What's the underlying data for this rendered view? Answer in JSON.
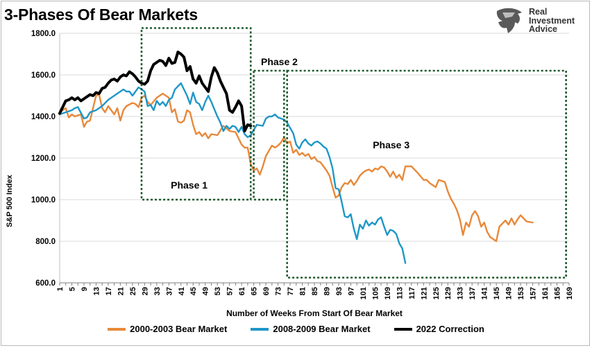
{
  "title": "3-Phases Of Bear Markets",
  "logo": {
    "line1": "Real",
    "line2": "Investment",
    "line3": "Advice"
  },
  "colors": {
    "bear2000": "#e8893a",
    "bear2008": "#1e97c8",
    "corr2022": "#000000",
    "phase_box": "#1f5a2e",
    "grid": "#d9d9d9"
  },
  "chart_data": {
    "type": "line",
    "title": "3-Phases Of Bear Markets",
    "xlabel": "Number of Weeks From Start Of Bear Market",
    "ylabel": "S&P 500 Index",
    "ylim": [
      600,
      1800
    ],
    "yticks": [
      "600.0",
      "800.0",
      "1000.0",
      "1200.0",
      "1400.0",
      "1600.0",
      "1800.0"
    ],
    "xlim": [
      1,
      169
    ],
    "xtick_labels": [
      "1",
      "5",
      "9",
      "13",
      "17",
      "21",
      "25",
      "29",
      "33",
      "37",
      "41",
      "45",
      "49",
      "53",
      "57",
      "61",
      "65",
      "69",
      "73",
      "77",
      "81",
      "85",
      "89",
      "93",
      "97",
      "101",
      "105",
      "109",
      "113",
      "117",
      "121",
      "125",
      "129",
      "133",
      "137",
      "141",
      "145",
      "149",
      "153",
      "157",
      "161",
      "165",
      "169"
    ],
    "series": [
      {
        "name": "2000-2003 Bear Market",
        "color": "#e8893a",
        "points": [
          [
            1,
            1420
          ],
          [
            3,
            1440
          ],
          [
            4,
            1395
          ],
          [
            5,
            1410
          ],
          [
            6,
            1400
          ],
          [
            8,
            1410
          ],
          [
            9,
            1350
          ],
          [
            10,
            1375
          ],
          [
            11,
            1380
          ],
          [
            13,
            1500
          ],
          [
            14,
            1505
          ],
          [
            15,
            1440
          ],
          [
            16,
            1420
          ],
          [
            17,
            1450
          ],
          [
            18,
            1430
          ],
          [
            19,
            1410
          ],
          [
            20,
            1440
          ],
          [
            21,
            1380
          ],
          [
            22,
            1430
          ],
          [
            23,
            1450
          ],
          [
            25,
            1465
          ],
          [
            26,
            1460
          ],
          [
            27,
            1445
          ],
          [
            28,
            1490
          ],
          [
            29,
            1500
          ],
          [
            30,
            1470
          ],
          [
            31,
            1455
          ],
          [
            33,
            1490
          ],
          [
            35,
            1510
          ],
          [
            37,
            1490
          ],
          [
            38,
            1420
          ],
          [
            39,
            1435
          ],
          [
            40,
            1375
          ],
          [
            41,
            1370
          ],
          [
            42,
            1380
          ],
          [
            43,
            1430
          ],
          [
            44,
            1420
          ],
          [
            45,
            1360
          ],
          [
            46,
            1315
          ],
          [
            47,
            1325
          ],
          [
            48,
            1305
          ],
          [
            49,
            1320
          ],
          [
            50,
            1295
          ],
          [
            51,
            1315
          ],
          [
            53,
            1310
          ],
          [
            55,
            1355
          ],
          [
            57,
            1330
          ],
          [
            59,
            1325
          ],
          [
            61,
            1265
          ],
          [
            62,
            1250
          ],
          [
            63,
            1250
          ],
          [
            64,
            1170
          ],
          [
            65,
            1140
          ],
          [
            66,
            1150
          ],
          [
            67,
            1120
          ],
          [
            68,
            1160
          ],
          [
            69,
            1210
          ],
          [
            70,
            1235
          ],
          [
            71,
            1260
          ],
          [
            72,
            1250
          ],
          [
            73,
            1260
          ],
          [
            74,
            1275
          ],
          [
            75,
            1300
          ],
          [
            76,
            1270
          ],
          [
            77,
            1280
          ],
          [
            78,
            1225
          ],
          [
            79,
            1240
          ],
          [
            80,
            1215
          ],
          [
            81,
            1225
          ],
          [
            82,
            1210
          ],
          [
            83,
            1220
          ],
          [
            84,
            1195
          ],
          [
            85,
            1205
          ],
          [
            86,
            1185
          ],
          [
            87,
            1180
          ],
          [
            88,
            1160
          ],
          [
            89,
            1140
          ],
          [
            90,
            1115
          ],
          [
            91,
            1060
          ],
          [
            92,
            1010
          ],
          [
            93,
            1020
          ],
          [
            94,
            1060
          ],
          [
            95,
            1080
          ],
          [
            96,
            1075
          ],
          [
            97,
            1095
          ],
          [
            98,
            1070
          ],
          [
            99,
            1090
          ],
          [
            100,
            1115
          ],
          [
            101,
            1130
          ],
          [
            102,
            1140
          ],
          [
            103,
            1145
          ],
          [
            104,
            1135
          ],
          [
            105,
            1150
          ],
          [
            106,
            1145
          ],
          [
            107,
            1160
          ],
          [
            108,
            1155
          ],
          [
            109,
            1135
          ],
          [
            110,
            1110
          ],
          [
            111,
            1135
          ],
          [
            112,
            1105
          ],
          [
            113,
            1120
          ],
          [
            114,
            1095
          ],
          [
            115,
            1160
          ],
          [
            117,
            1160
          ],
          [
            119,
            1130
          ],
          [
            121,
            1095
          ],
          [
            122,
            1095
          ],
          [
            123,
            1080
          ],
          [
            125,
            1060
          ],
          [
            126,
            1095
          ],
          [
            128,
            1085
          ],
          [
            129,
            1040
          ],
          [
            130,
            1005
          ],
          [
            131,
            980
          ],
          [
            132,
            950
          ],
          [
            133,
            905
          ],
          [
            134,
            830
          ],
          [
            135,
            890
          ],
          [
            136,
            870
          ],
          [
            137,
            925
          ],
          [
            138,
            945
          ],
          [
            139,
            920
          ],
          [
            140,
            870
          ],
          [
            141,
            890
          ],
          [
            142,
            845
          ],
          [
            143,
            820
          ],
          [
            144,
            810
          ],
          [
            145,
            800
          ],
          [
            146,
            870
          ],
          [
            147,
            885
          ],
          [
            148,
            900
          ],
          [
            149,
            880
          ],
          [
            150,
            910
          ],
          [
            151,
            880
          ],
          [
            152,
            905
          ],
          [
            153,
            925
          ],
          [
            154,
            910
          ],
          [
            155,
            895
          ],
          [
            157,
            890
          ]
        ]
      },
      {
        "name": "2008-2009 Bear Market",
        "color": "#1e97c8",
        "points": [
          [
            1,
            1410
          ],
          [
            3,
            1420
          ],
          [
            4,
            1425
          ],
          [
            5,
            1430
          ],
          [
            6,
            1440
          ],
          [
            7,
            1445
          ],
          [
            9,
            1390
          ],
          [
            10,
            1395
          ],
          [
            11,
            1420
          ],
          [
            13,
            1430
          ],
          [
            15,
            1450
          ],
          [
            17,
            1480
          ],
          [
            19,
            1500
          ],
          [
            21,
            1520
          ],
          [
            22,
            1530
          ],
          [
            23,
            1520
          ],
          [
            24,
            1520
          ],
          [
            25,
            1500
          ],
          [
            27,
            1540
          ],
          [
            29,
            1520
          ],
          [
            30,
            1450
          ],
          [
            31,
            1455
          ],
          [
            32,
            1430
          ],
          [
            33,
            1475
          ],
          [
            34,
            1455
          ],
          [
            35,
            1470
          ],
          [
            36,
            1450
          ],
          [
            37,
            1480
          ],
          [
            38,
            1490
          ],
          [
            39,
            1530
          ],
          [
            40,
            1545
          ],
          [
            41,
            1560
          ],
          [
            42,
            1530
          ],
          [
            43,
            1500
          ],
          [
            44,
            1460
          ],
          [
            45,
            1515
          ],
          [
            46,
            1470
          ],
          [
            47,
            1460
          ],
          [
            48,
            1430
          ],
          [
            49,
            1470
          ],
          [
            50,
            1500
          ],
          [
            51,
            1470
          ],
          [
            52,
            1435
          ],
          [
            53,
            1400
          ],
          [
            54,
            1370
          ],
          [
            55,
            1330
          ],
          [
            56,
            1355
          ],
          [
            57,
            1340
          ],
          [
            58,
            1355
          ],
          [
            59,
            1350
          ],
          [
            60,
            1325
          ],
          [
            61,
            1350
          ],
          [
            62,
            1315
          ],
          [
            63,
            1300
          ],
          [
            64,
            1310
          ],
          [
            66,
            1360
          ],
          [
            68,
            1355
          ],
          [
            69,
            1390
          ],
          [
            70,
            1400
          ],
          [
            71,
            1400
          ],
          [
            72,
            1410
          ],
          [
            73,
            1395
          ],
          [
            75,
            1385
          ],
          [
            76,
            1370
          ],
          [
            77,
            1345
          ],
          [
            78,
            1320
          ],
          [
            79,
            1265
          ],
          [
            80,
            1245
          ],
          [
            81,
            1275
          ],
          [
            82,
            1290
          ],
          [
            83,
            1270
          ],
          [
            84,
            1260
          ],
          [
            85,
            1275
          ],
          [
            86,
            1280
          ],
          [
            87,
            1270
          ],
          [
            88,
            1255
          ],
          [
            89,
            1245
          ],
          [
            90,
            1205
          ],
          [
            91,
            1150
          ],
          [
            92,
            1055
          ],
          [
            93,
            1050
          ],
          [
            94,
            990
          ],
          [
            95,
            920
          ],
          [
            96,
            915
          ],
          [
            97,
            930
          ],
          [
            98,
            860
          ],
          [
            99,
            810
          ],
          [
            100,
            880
          ],
          [
            101,
            860
          ],
          [
            102,
            900
          ],
          [
            103,
            875
          ],
          [
            104,
            890
          ],
          [
            105,
            880
          ],
          [
            106,
            905
          ],
          [
            107,
            915
          ],
          [
            108,
            870
          ],
          [
            109,
            830
          ],
          [
            110,
            855
          ],
          [
            111,
            850
          ],
          [
            112,
            835
          ],
          [
            113,
            790
          ],
          [
            114,
            765
          ],
          [
            115,
            695
          ]
        ]
      },
      {
        "name": "2022 Correction",
        "color": "#000000",
        "points": [
          [
            1,
            1415
          ],
          [
            3,
            1475
          ],
          [
            4,
            1480
          ],
          [
            5,
            1490
          ],
          [
            6,
            1480
          ],
          [
            7,
            1490
          ],
          [
            8,
            1475
          ],
          [
            9,
            1485
          ],
          [
            10,
            1495
          ],
          [
            11,
            1505
          ],
          [
            12,
            1500
          ],
          [
            13,
            1515
          ],
          [
            14,
            1510
          ],
          [
            15,
            1535
          ],
          [
            16,
            1540
          ],
          [
            17,
            1560
          ],
          [
            18,
            1575
          ],
          [
            19,
            1580
          ],
          [
            20,
            1570
          ],
          [
            21,
            1590
          ],
          [
            22,
            1600
          ],
          [
            23,
            1595
          ],
          [
            24,
            1615
          ],
          [
            25,
            1605
          ],
          [
            26,
            1590
          ],
          [
            27,
            1570
          ],
          [
            28,
            1560
          ],
          [
            29,
            1555
          ],
          [
            30,
            1570
          ],
          [
            31,
            1620
          ],
          [
            32,
            1650
          ],
          [
            33,
            1660
          ],
          [
            34,
            1670
          ],
          [
            35,
            1665
          ],
          [
            36,
            1645
          ],
          [
            37,
            1680
          ],
          [
            38,
            1655
          ],
          [
            39,
            1660
          ],
          [
            40,
            1710
          ],
          [
            41,
            1700
          ],
          [
            42,
            1685
          ],
          [
            43,
            1620
          ],
          [
            44,
            1640
          ],
          [
            45,
            1580
          ],
          [
            46,
            1560
          ],
          [
            47,
            1595
          ],
          [
            48,
            1560
          ],
          [
            49,
            1540
          ],
          [
            50,
            1520
          ],
          [
            51,
            1590
          ],
          [
            52,
            1635
          ],
          [
            53,
            1610
          ],
          [
            54,
            1570
          ],
          [
            55,
            1540
          ],
          [
            56,
            1510
          ],
          [
            57,
            1430
          ],
          [
            58,
            1420
          ],
          [
            59,
            1445
          ],
          [
            60,
            1475
          ],
          [
            61,
            1450
          ],
          [
            62,
            1330
          ],
          [
            63,
            1360
          ],
          [
            64,
            1355
          ]
        ]
      }
    ],
    "phases": [
      {
        "label": "Phase 1",
        "x_start": 28,
        "x_end": 64,
        "y_low": 1000,
        "y_high": 1825
      },
      {
        "label": "Phase 2",
        "x_start": 65,
        "x_end": 75,
        "y_low": 1000,
        "y_high": 1620
      },
      {
        "label": "Phase 3",
        "x_start": 76,
        "x_end": 168,
        "y_low": 625,
        "y_high": 1620
      }
    ],
    "legend": [
      "2000-2003 Bear Market",
      "2008-2009 Bear Market",
      "2022 Correction"
    ]
  }
}
